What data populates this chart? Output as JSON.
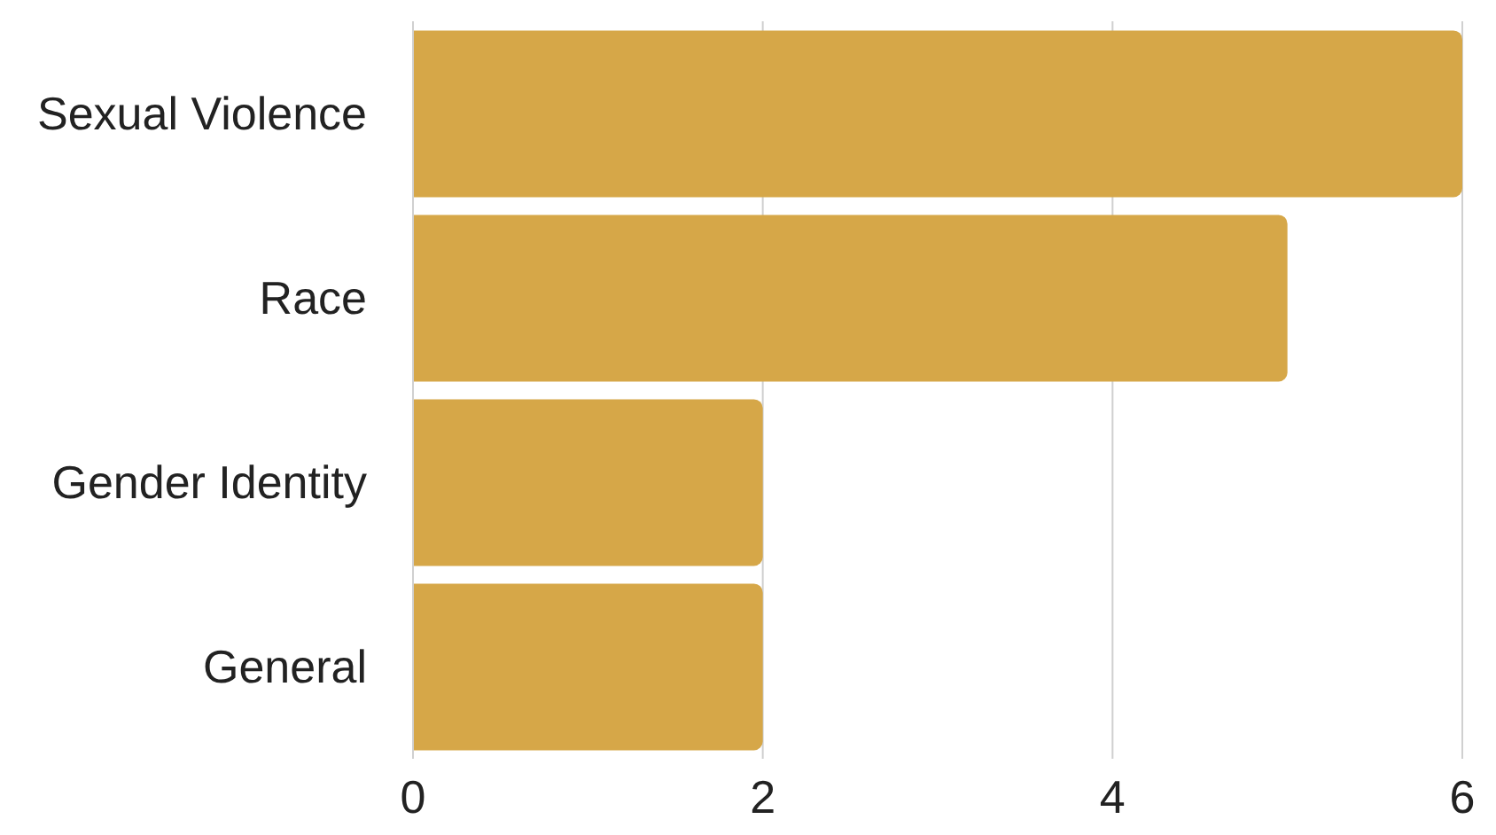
{
  "chart_data": {
    "type": "bar",
    "orientation": "horizontal",
    "categories": [
      "Sexual Violence",
      "Race",
      "Gender Identity",
      "General"
    ],
    "values": [
      6,
      5,
      2,
      2
    ],
    "color": "#d6a748",
    "xlim": [
      0,
      6
    ],
    "xticks": [
      0,
      2,
      4,
      6
    ],
    "grid": "x"
  }
}
